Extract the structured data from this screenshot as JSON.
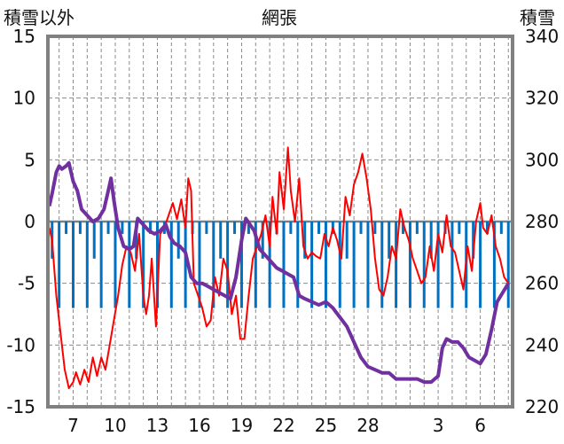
{
  "chart_data": {
    "type": "line",
    "title": "網張",
    "left_axis_label": "積雪以外",
    "right_axis_label": "積雪",
    "left_ylim": [
      -15,
      15
    ],
    "left_ticks": [
      "15",
      "10",
      "5",
      "0",
      "-5",
      "-10",
      "-15"
    ],
    "right_ylim": [
      220,
      340
    ],
    "right_ticks": [
      "340",
      "320",
      "300",
      "280",
      "260",
      "240",
      "220"
    ],
    "x_tick_labels": [
      "7",
      "10",
      "13",
      "16",
      "19",
      "22",
      "25",
      "28",
      "3",
      "6"
    ],
    "x_tick_days": [
      7,
      10,
      13,
      16,
      19,
      22,
      25,
      28,
      33,
      36
    ],
    "xlim": [
      5.2,
      38.3
    ],
    "grid": true,
    "colors": {
      "red": "#ff0000",
      "purple": "#7030a0",
      "blue": "#0070c0",
      "frame": "#808080",
      "grid": "#8a8a8a"
    },
    "series": [
      {
        "axis": "left",
        "color": "#ff0000",
        "points": [
          [
            5.3,
            -0.5
          ],
          [
            5.5,
            -1.5
          ],
          [
            5.8,
            -6
          ],
          [
            6.1,
            -9
          ],
          [
            6.4,
            -12
          ],
          [
            6.7,
            -13.5
          ],
          [
            7.0,
            -13
          ],
          [
            7.2,
            -12.2
          ],
          [
            7.5,
            -13.2
          ],
          [
            7.8,
            -12
          ],
          [
            8.1,
            -13
          ],
          [
            8.4,
            -11
          ],
          [
            8.7,
            -12.5
          ],
          [
            9.0,
            -11
          ],
          [
            9.3,
            -12
          ],
          [
            9.6,
            -10
          ],
          [
            9.9,
            -8
          ],
          [
            10.2,
            -6
          ],
          [
            10.5,
            -3.5
          ],
          [
            10.8,
            -2
          ],
          [
            11.1,
            -2.5
          ],
          [
            11.4,
            -4
          ],
          [
            11.7,
            -1
          ],
          [
            12.0,
            -6
          ],
          [
            12.2,
            -7.5
          ],
          [
            12.4,
            -6
          ],
          [
            12.6,
            -3
          ],
          [
            12.9,
            -8.5
          ],
          [
            13.2,
            -1
          ],
          [
            13.5,
            -0.5
          ],
          [
            13.8,
            0.5
          ],
          [
            14.1,
            1.5
          ],
          [
            14.4,
            0.2
          ],
          [
            14.7,
            1.8
          ],
          [
            15.0,
            -0.5
          ],
          [
            15.2,
            3.5
          ],
          [
            15.4,
            2.5
          ],
          [
            15.6,
            -5
          ],
          [
            15.9,
            -6
          ],
          [
            16.2,
            -7
          ],
          [
            16.5,
            -8.5
          ],
          [
            16.8,
            -8
          ],
          [
            17.1,
            -4.5
          ],
          [
            17.4,
            -6
          ],
          [
            17.7,
            -3
          ],
          [
            18.0,
            -4
          ],
          [
            18.3,
            -7.5
          ],
          [
            18.6,
            -6
          ],
          [
            18.9,
            -9.5
          ],
          [
            19.2,
            -9.5
          ],
          [
            19.5,
            -6
          ],
          [
            19.8,
            -3
          ],
          [
            20.1,
            -2
          ],
          [
            20.4,
            -1
          ],
          [
            20.7,
            0.5
          ],
          [
            21.0,
            -2
          ],
          [
            21.2,
            2
          ],
          [
            21.5,
            -1
          ],
          [
            21.7,
            4
          ],
          [
            22.0,
            1
          ],
          [
            22.3,
            6
          ],
          [
            22.5,
            2.5
          ],
          [
            22.8,
            0
          ],
          [
            23.1,
            3.5
          ],
          [
            23.4,
            -2
          ],
          [
            23.7,
            -3
          ],
          [
            24.0,
            -2.5
          ],
          [
            24.3,
            -2.8
          ],
          [
            24.6,
            -3
          ],
          [
            24.9,
            -1
          ],
          [
            25.2,
            -2
          ],
          [
            25.5,
            -0.5
          ],
          [
            25.8,
            -1.5
          ],
          [
            26.1,
            -3
          ],
          [
            26.4,
            2
          ],
          [
            26.7,
            0.5
          ],
          [
            27.0,
            3
          ],
          [
            27.3,
            4
          ],
          [
            27.6,
            5.5
          ],
          [
            27.9,
            3.5
          ],
          [
            28.2,
            1
          ],
          [
            28.5,
            -3
          ],
          [
            28.8,
            -5.5
          ],
          [
            29.1,
            -6
          ],
          [
            29.4,
            -4.5
          ],
          [
            29.7,
            -2
          ],
          [
            30.0,
            -3
          ],
          [
            30.3,
            1
          ],
          [
            30.6,
            -0.5
          ],
          [
            30.9,
            -1.5
          ],
          [
            31.2,
            -3
          ],
          [
            31.5,
            -4
          ],
          [
            31.8,
            -5
          ],
          [
            32.1,
            -4.5
          ],
          [
            32.4,
            -2
          ],
          [
            32.7,
            -4
          ],
          [
            33.0,
            -1
          ],
          [
            33.3,
            -2.5
          ],
          [
            33.6,
            0.5
          ],
          [
            33.9,
            -2
          ],
          [
            34.2,
            -2.5
          ],
          [
            34.5,
            -4
          ],
          [
            34.8,
            -5.5
          ],
          [
            35.1,
            -2
          ],
          [
            35.4,
            -4
          ],
          [
            35.7,
            0
          ],
          [
            36.0,
            1.5
          ],
          [
            36.2,
            -0.5
          ],
          [
            36.5,
            -1
          ],
          [
            36.8,
            0.5
          ],
          [
            37.1,
            -2
          ],
          [
            37.4,
            -3
          ],
          [
            37.7,
            -4.5
          ],
          [
            38.0,
            -5
          ]
        ]
      },
      {
        "axis": "right",
        "color": "#7030a0",
        "points": [
          [
            5.3,
            285
          ],
          [
            5.5,
            289
          ],
          [
            5.8,
            296
          ],
          [
            6.0,
            298
          ],
          [
            6.2,
            297
          ],
          [
            6.5,
            298
          ],
          [
            6.7,
            299
          ],
          [
            7.0,
            293
          ],
          [
            7.3,
            290
          ],
          [
            7.6,
            284
          ],
          [
            8.0,
            282
          ],
          [
            8.4,
            280
          ],
          [
            8.8,
            281
          ],
          [
            9.2,
            284
          ],
          [
            9.5,
            290
          ],
          [
            9.7,
            294
          ],
          [
            9.9,
            287
          ],
          [
            10.2,
            278
          ],
          [
            10.6,
            272
          ],
          [
            11.0,
            271
          ],
          [
            11.3,
            272
          ],
          [
            11.6,
            281
          ],
          [
            12.0,
            279
          ],
          [
            12.4,
            277
          ],
          [
            12.8,
            276
          ],
          [
            13.2,
            277
          ],
          [
            13.6,
            279
          ],
          [
            13.9,
            275
          ],
          [
            14.2,
            273
          ],
          [
            14.6,
            272
          ],
          [
            15.0,
            270
          ],
          [
            15.4,
            262
          ],
          [
            15.8,
            260
          ],
          [
            16.2,
            260
          ],
          [
            16.6,
            259
          ],
          [
            17.0,
            258
          ],
          [
            17.4,
            257
          ],
          [
            17.8,
            256
          ],
          [
            18.2,
            255
          ],
          [
            18.6,
            262
          ],
          [
            19.0,
            274
          ],
          [
            19.3,
            281
          ],
          [
            19.6,
            279
          ],
          [
            19.9,
            277
          ],
          [
            20.3,
            271
          ],
          [
            20.7,
            269
          ],
          [
            21.1,
            267
          ],
          [
            21.5,
            265
          ],
          [
            21.9,
            264
          ],
          [
            22.3,
            263
          ],
          [
            22.7,
            262
          ],
          [
            23.1,
            256
          ],
          [
            23.5,
            255
          ],
          [
            24.0,
            254
          ],
          [
            24.5,
            253
          ],
          [
            25.0,
            254
          ],
          [
            25.5,
            252
          ],
          [
            26.0,
            249
          ],
          [
            26.5,
            246
          ],
          [
            27.0,
            241
          ],
          [
            27.5,
            236
          ],
          [
            28.0,
            233
          ],
          [
            28.5,
            232
          ],
          [
            29.0,
            231
          ],
          [
            29.5,
            231
          ],
          [
            30.0,
            229
          ],
          [
            30.5,
            229
          ],
          [
            31.0,
            229
          ],
          [
            31.5,
            229
          ],
          [
            32.0,
            228
          ],
          [
            32.5,
            228
          ],
          [
            33.0,
            230
          ],
          [
            33.3,
            239
          ],
          [
            33.6,
            242
          ],
          [
            34.0,
            241
          ],
          [
            34.4,
            241
          ],
          [
            34.8,
            239
          ],
          [
            35.2,
            236
          ],
          [
            35.6,
            235
          ],
          [
            36.0,
            234
          ],
          [
            36.4,
            237
          ],
          [
            36.8,
            245
          ],
          [
            37.2,
            254
          ],
          [
            37.6,
            257
          ],
          [
            38.0,
            260
          ]
        ]
      }
    ],
    "bars": {
      "axis": "left",
      "color": "#0070c0",
      "values": [
        -3,
        -7,
        -1,
        -7,
        -1,
        -7,
        -3,
        -7,
        -1,
        -7,
        -1,
        -7,
        -3,
        -7,
        -1,
        -7,
        -1,
        -7,
        -3,
        -7,
        -1,
        -7,
        -1,
        -7,
        -3,
        -7,
        -1,
        -7,
        -1,
        -7,
        -3,
        -7,
        -1,
        -7,
        -1,
        -7,
        -3,
        -7,
        -1,
        -7,
        -1,
        -7,
        -3,
        -7,
        -1,
        -7,
        -1,
        -7,
        -3,
        -7,
        -1,
        -7,
        -1,
        -7,
        -3,
        -7,
        -1,
        -7,
        -1,
        -7,
        -3,
        -7,
        -1,
        -7,
        -1,
        -7
      ]
    }
  }
}
